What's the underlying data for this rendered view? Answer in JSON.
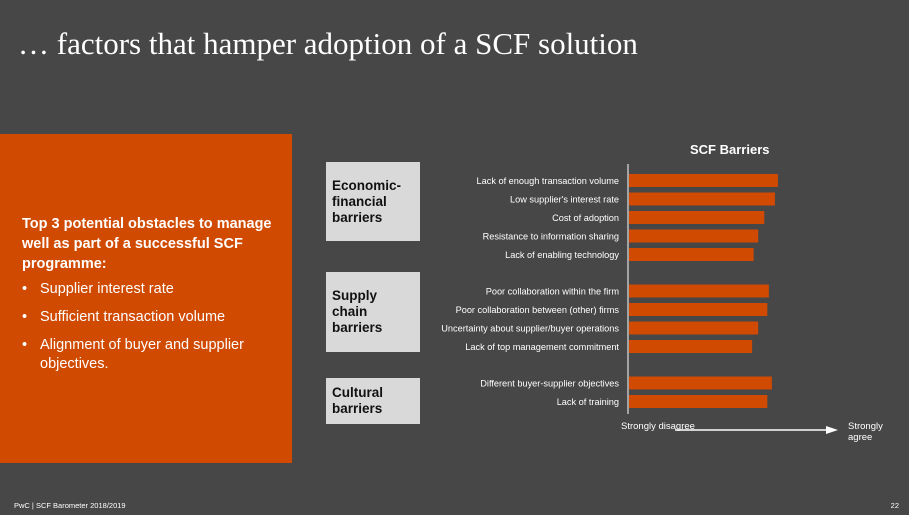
{
  "title": "… factors that hamper adoption of a SCF solution",
  "panel": {
    "heading": "Top 3 potential obstacles to manage well as part of a successful SCF programme:",
    "bullets": [
      "Supplier interest rate",
      "Sufficient transaction volume",
      "Alignment of buyer and supplier objectives."
    ]
  },
  "groups": [
    {
      "label": "Economic-financial barriers"
    },
    {
      "label": "Supply chain barriers"
    },
    {
      "label": "Cultural barriers"
    }
  ],
  "axis": {
    "left": "Strongly disagree",
    "right": "Strongly agree"
  },
  "colors": {
    "accent": "#D04A02",
    "background": "#474747",
    "group_box": "#D9D9D9"
  },
  "chart_data": {
    "type": "bar",
    "orientation": "horizontal",
    "title": "SCF Barriers",
    "categories": [
      "Lack of enough transaction volume",
      "Low supplier's interest rate",
      "Cost of adoption",
      "Resistance to information sharing",
      "Lack of enabling technology",
      "Poor collaboration within the firm",
      "Poor collaboration between (other) firms",
      "Uncertainty about supplier/buyer operations",
      "Lack of top management commitment",
      "Different buyer-supplier objectives",
      "Lack of training"
    ],
    "group_index": [
      0,
      0,
      0,
      0,
      0,
      1,
      1,
      1,
      1,
      2,
      2
    ],
    "values": [
      0.98,
      0.96,
      0.89,
      0.85,
      0.82,
      0.92,
      0.91,
      0.85,
      0.81,
      0.94,
      0.91
    ],
    "xlim": [
      0,
      1
    ],
    "xlabel": "",
    "grid": false
  },
  "footer": {
    "left": "PwC | SCF Barometer 2018/2019",
    "page": "22"
  }
}
